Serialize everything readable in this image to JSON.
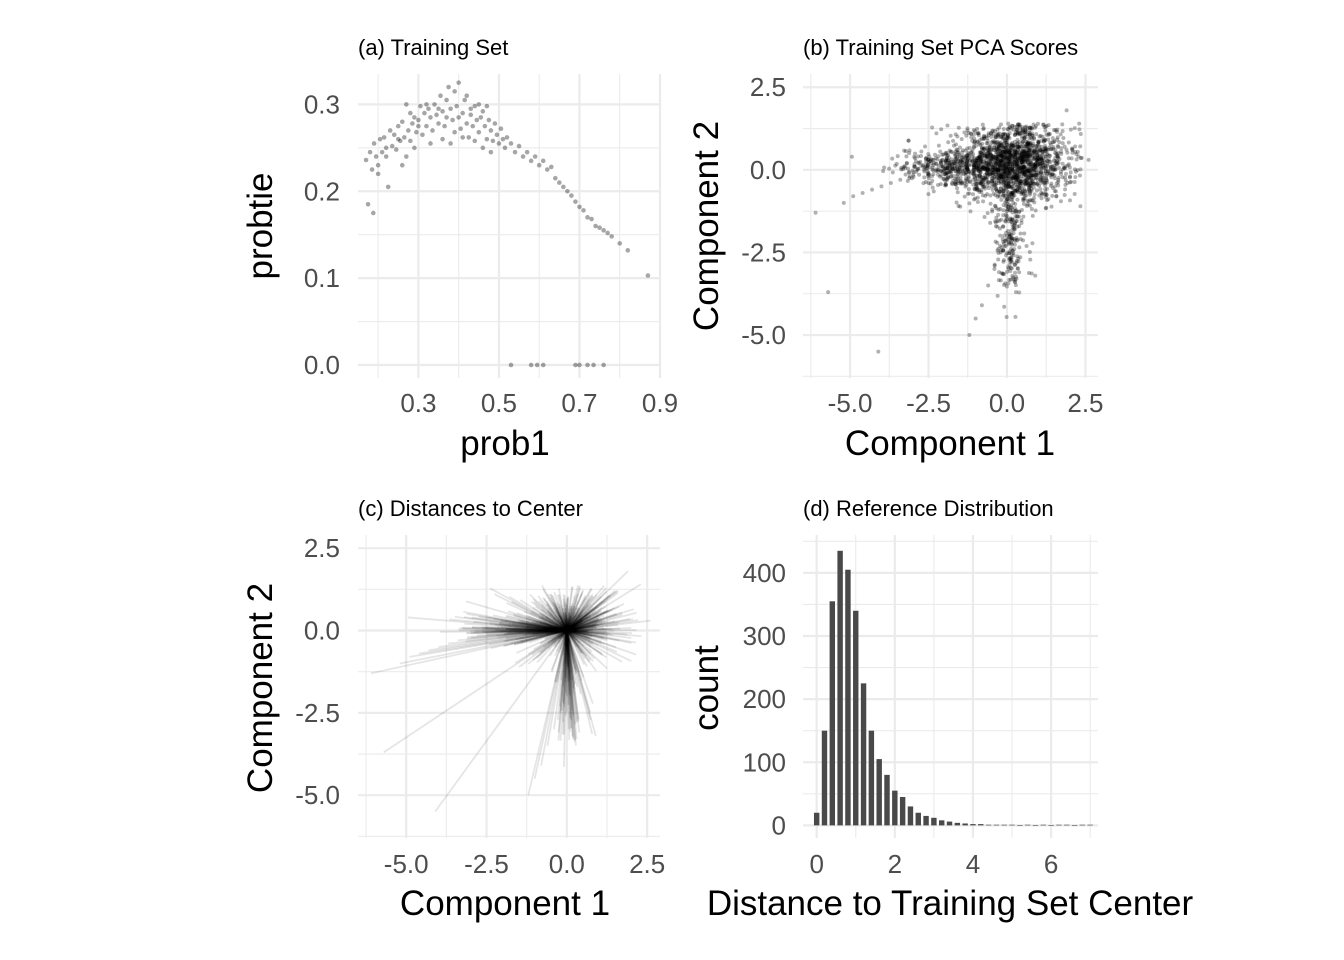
{
  "chart_data": [
    {
      "type": "scatter",
      "title": "(a) Training Set",
      "xlabel": "prob1",
      "ylabel": "probtie",
      "xlim": [
        0.15,
        0.9
      ],
      "ylim": [
        -0.015,
        0.335
      ],
      "xticks": [
        0.3,
        0.5,
        0.7,
        0.9
      ],
      "xtick_labels": [
        "0.3",
        "0.5",
        "0.7",
        "0.9"
      ],
      "yticks": [
        0.0,
        0.1,
        0.2,
        0.3
      ],
      "ytick_labels": [
        "0.0",
        "0.1",
        "0.2",
        "0.3"
      ],
      "grid": true,
      "legend": "none",
      "points": [
        [
          0.17,
          0.236
        ],
        [
          0.175,
          0.185
        ],
        [
          0.18,
          0.245
        ],
        [
          0.185,
          0.225
        ],
        [
          0.188,
          0.175
        ],
        [
          0.19,
          0.255
        ],
        [
          0.195,
          0.24
        ],
        [
          0.2,
          0.23
        ],
        [
          0.205,
          0.26
        ],
        [
          0.21,
          0.245
        ],
        [
          0.215,
          0.262
        ],
        [
          0.22,
          0.25
        ],
        [
          0.225,
          0.205
        ],
        [
          0.23,
          0.27
        ],
        [
          0.235,
          0.252
        ],
        [
          0.24,
          0.265
        ],
        [
          0.245,
          0.248
        ],
        [
          0.25,
          0.275
        ],
        [
          0.255,
          0.258
        ],
        [
          0.26,
          0.28
        ],
        [
          0.265,
          0.262
        ],
        [
          0.27,
          0.3
        ],
        [
          0.275,
          0.27
        ],
        [
          0.28,
          0.258
        ],
        [
          0.285,
          0.278
        ],
        [
          0.29,
          0.285
        ],
        [
          0.295,
          0.268
        ],
        [
          0.3,
          0.282
        ],
        [
          0.305,
          0.298
        ],
        [
          0.31,
          0.265
        ],
        [
          0.315,
          0.29
        ],
        [
          0.32,
          0.275
        ],
        [
          0.325,
          0.295
        ],
        [
          0.33,
          0.285
        ],
        [
          0.335,
          0.27
        ],
        [
          0.34,
          0.3
        ],
        [
          0.345,
          0.288
        ],
        [
          0.35,
          0.278
        ],
        [
          0.355,
          0.31
        ],
        [
          0.36,
          0.292
        ],
        [
          0.365,
          0.275
        ],
        [
          0.37,
          0.285
        ],
        [
          0.375,
          0.32
        ],
        [
          0.38,
          0.295
        ],
        [
          0.385,
          0.282
        ],
        [
          0.39,
          0.268
        ],
        [
          0.395,
          0.298
        ],
        [
          0.4,
          0.285
        ],
        [
          0.405,
          0.272
        ],
        [
          0.41,
          0.29
        ],
        [
          0.415,
          0.305
        ],
        [
          0.42,
          0.278
        ],
        [
          0.425,
          0.262
        ],
        [
          0.43,
          0.288
        ],
        [
          0.435,
          0.275
        ],
        [
          0.44,
          0.298
        ],
        [
          0.445,
          0.282
        ],
        [
          0.45,
          0.268
        ],
        [
          0.455,
          0.285
        ],
        [
          0.46,
          0.292
        ],
        [
          0.465,
          0.275
        ],
        [
          0.47,
          0.26
        ],
        [
          0.475,
          0.282
        ],
        [
          0.48,
          0.27
        ],
        [
          0.485,
          0.258
        ],
        [
          0.49,
          0.278
        ],
        [
          0.495,
          0.265
        ],
        [
          0.5,
          0.255
        ],
        [
          0.505,
          0.272
        ],
        [
          0.51,
          0.26
        ],
        [
          0.515,
          0.25
        ],
        [
          0.52,
          0.262
        ],
        [
          0.53,
          0.255
        ],
        [
          0.54,
          0.245
        ],
        [
          0.55,
          0.252
        ],
        [
          0.56,
          0.24
        ],
        [
          0.57,
          0.245
        ],
        [
          0.58,
          0.235
        ],
        [
          0.59,
          0.24
        ],
        [
          0.6,
          0.23
        ],
        [
          0.61,
          0.235
        ],
        [
          0.62,
          0.225
        ],
        [
          0.63,
          0.228
        ],
        [
          0.64,
          0.215
        ],
        [
          0.65,
          0.21
        ],
        [
          0.66,
          0.205
        ],
        [
          0.67,
          0.2
        ],
        [
          0.68,
          0.195
        ],
        [
          0.69,
          0.188
        ],
        [
          0.7,
          0.182
        ],
        [
          0.71,
          0.178
        ],
        [
          0.72,
          0.17
        ],
        [
          0.73,
          0.168
        ],
        [
          0.74,
          0.16
        ],
        [
          0.75,
          0.158
        ],
        [
          0.76,
          0.155
        ],
        [
          0.77,
          0.152
        ],
        [
          0.78,
          0.148
        ],
        [
          0.8,
          0.14
        ],
        [
          0.82,
          0.132
        ],
        [
          0.87,
          0.103
        ],
        [
          0.36,
          0.26
        ],
        [
          0.38,
          0.255
        ],
        [
          0.41,
          0.262
        ],
        [
          0.44,
          0.258
        ],
        [
          0.33,
          0.255
        ],
        [
          0.29,
          0.25
        ],
        [
          0.27,
          0.24
        ],
        [
          0.26,
          0.23
        ],
        [
          0.46,
          0.25
        ],
        [
          0.48,
          0.245
        ],
        [
          0.42,
          0.31
        ],
        [
          0.4,
          0.325
        ],
        [
          0.39,
          0.315
        ],
        [
          0.45,
          0.3
        ],
        [
          0.47,
          0.298
        ],
        [
          0.43,
          0.295
        ],
        [
          0.37,
          0.305
        ],
        [
          0.35,
          0.295
        ],
        [
          0.32,
          0.3
        ],
        [
          0.3,
          0.275
        ],
        [
          0.28,
          0.29
        ],
        [
          0.25,
          0.26
        ],
        [
          0.22,
          0.24
        ],
        [
          0.2,
          0.22
        ],
        [
          0.53,
          0.0
        ],
        [
          0.58,
          0.0
        ],
        [
          0.595,
          0.0
        ],
        [
          0.61,
          0.0
        ],
        [
          0.69,
          0.0
        ],
        [
          0.7,
          0.0
        ],
        [
          0.72,
          0.0
        ],
        [
          0.735,
          0.0
        ],
        [
          0.76,
          0.0
        ]
      ]
    },
    {
      "type": "scatter",
      "title": "(b) Training Set PCA Scores",
      "xlabel": "Component 1",
      "ylabel": "Component 2",
      "xlim": [
        -6.5,
        2.9
      ],
      "ylim": [
        -6.3,
        2.9
      ],
      "xticks": [
        -5.0,
        -2.5,
        0.0,
        2.5
      ],
      "xtick_labels": [
        "-5.0",
        "-2.5",
        "0.0",
        "2.5"
      ],
      "yticks": [
        -5.0,
        -2.5,
        0.0,
        2.5
      ],
      "ytick_labels": [
        "-5.0",
        "-2.5",
        "0.0",
        "2.5"
      ],
      "grid": true,
      "legend": "none",
      "points": [
        [
          -6.1,
          -1.3
        ],
        [
          -5.7,
          -3.7
        ],
        [
          -5.2,
          -1.0
        ],
        [
          -4.9,
          -0.8
        ],
        [
          -4.6,
          -0.7
        ],
        [
          -4.3,
          -0.6
        ],
        [
          -4.1,
          -5.5
        ],
        [
          -4.0,
          -0.5
        ],
        [
          -3.7,
          -0.4
        ],
        [
          -3.4,
          -0.3
        ],
        [
          -3.1,
          -0.2
        ],
        [
          -2.8,
          -0.15
        ],
        [
          -2.5,
          -0.1
        ],
        [
          -2.2,
          0.0
        ],
        [
          -1.9,
          0.05
        ],
        [
          -1.6,
          0.1
        ],
        [
          -1.3,
          0.2
        ],
        [
          -1.2,
          -5.0
        ],
        [
          -1.0,
          -4.5
        ],
        [
          -0.8,
          -4.1
        ],
        [
          -0.6,
          -3.5
        ],
        [
          -0.4,
          -3.0
        ],
        [
          -0.2,
          -2.5
        ],
        [
          0.0,
          -2.0
        ],
        [
          0.1,
          -1.5
        ],
        [
          0.2,
          -1.0
        ],
        [
          0.3,
          -0.5
        ],
        [
          1.9,
          1.8
        ],
        [
          2.3,
          1.4
        ],
        [
          2.6,
          0.3
        ],
        [
          1.5,
          1.2
        ],
        [
          -0.5,
          1.1
        ],
        [
          0.9,
          -3.2
        ]
      ],
      "clusters": [
        {
          "center": [
            0.2,
            0.2
          ],
          "spread": [
            0.9,
            0.55
          ],
          "n": 1600
        },
        {
          "center": [
            -1.8,
            0.1
          ],
          "spread": [
            1.0,
            0.25
          ],
          "n": 350
        },
        {
          "center": [
            0.1,
            -1.8
          ],
          "spread": [
            0.25,
            1.0
          ],
          "n": 260
        }
      ]
    },
    {
      "type": "line",
      "title": "(c) Distances to Center",
      "xlabel": "Component 1",
      "ylabel": "Component 2",
      "xlim": [
        -6.5,
        2.9
      ],
      "ylim": [
        -6.3,
        2.9
      ],
      "xticks": [
        -5.0,
        -2.5,
        0.0,
        2.5
      ],
      "xtick_labels": [
        "-5.0",
        "-2.5",
        "0.0",
        "2.5"
      ],
      "yticks": [
        -5.0,
        -2.5,
        0.0,
        2.5
      ],
      "ytick_labels": [
        "-5.0",
        "-2.5",
        "0.0",
        "2.5"
      ],
      "grid": true,
      "legend": "none",
      "center": [
        0.0,
        0.0
      ],
      "note_segments_from_center_to_points_of": "(b) Training Set PCA Scores"
    },
    {
      "type": "bar",
      "title": "(d) Reference Distribution",
      "xlabel": "Distance to Training Set Center",
      "ylabel": "count",
      "xlim": [
        -0.35,
        7.2
      ],
      "ylim": [
        -20,
        460
      ],
      "xticks": [
        0,
        2,
        4,
        6
      ],
      "xtick_labels": [
        "0",
        "2",
        "4",
        "6"
      ],
      "yticks": [
        0,
        100,
        200,
        300,
        400
      ],
      "ytick_labels": [
        "0",
        "100",
        "200",
        "300",
        "400"
      ],
      "grid": true,
      "legend": "none",
      "bin_width": 0.2,
      "bin_starts": [
        -0.1,
        0.1,
        0.3,
        0.5,
        0.7,
        0.9,
        1.1,
        1.3,
        1.5,
        1.7,
        1.9,
        2.1,
        2.3,
        2.5,
        2.7,
        2.9,
        3.1,
        3.3,
        3.5,
        3.7,
        3.9,
        4.1,
        4.3,
        4.5,
        4.7,
        4.9,
        5.1,
        5.3,
        5.5,
        5.7,
        5.9,
        6.1,
        6.3,
        6.5,
        6.7,
        6.9
      ],
      "values": [
        20,
        150,
        355,
        435,
        405,
        340,
        225,
        150,
        105,
        80,
        55,
        45,
        30,
        20,
        15,
        12,
        8,
        6,
        4,
        3,
        2,
        2,
        1,
        1,
        1,
        1,
        0,
        1,
        0,
        1,
        0,
        1,
        1,
        0,
        1,
        1
      ]
    }
  ]
}
